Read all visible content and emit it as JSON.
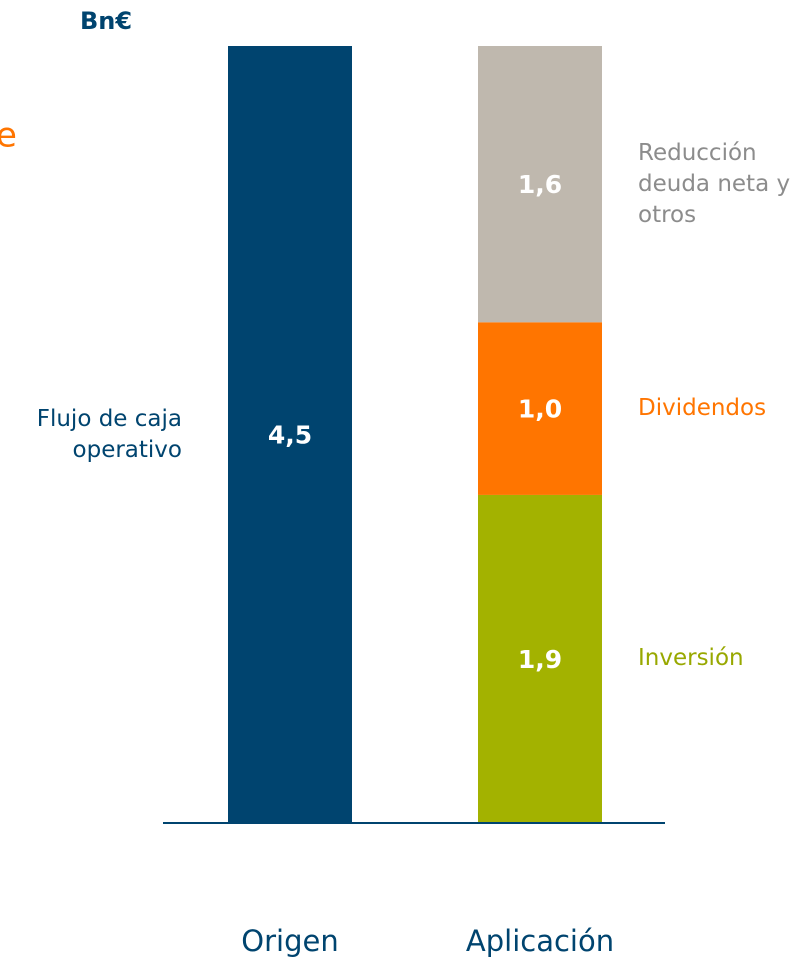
{
  "chart_data": {
    "type": "stacked_bar",
    "unit_label": "Bn€",
    "annotation": "e",
    "categories": [
      "Origen",
      "Aplicación"
    ],
    "series": [
      {
        "name": "Flujo de caja operativo",
        "color": "#00446f",
        "label_color": "#00446f",
        "values": [
          4.5,
          null
        ],
        "value_labels": [
          "4,5",
          null
        ]
      },
      {
        "name": "Inversión",
        "color": "#a3b200",
        "label_color": "#98a800",
        "values": [
          null,
          1.9
        ],
        "value_labels": [
          null,
          "1,9"
        ]
      },
      {
        "name": "Dividendos",
        "color": "#ff7500",
        "label_color": "#ff7500",
        "values": [
          null,
          1.0
        ],
        "value_labels": [
          null,
          "1,0"
        ]
      },
      {
        "name": "Reducción deuda neta y otros",
        "color": "#bfb8ae",
        "label_color": "#8c8c8c",
        "values": [
          null,
          1.6
        ],
        "value_labels": [
          null,
          "1,6"
        ]
      }
    ]
  }
}
